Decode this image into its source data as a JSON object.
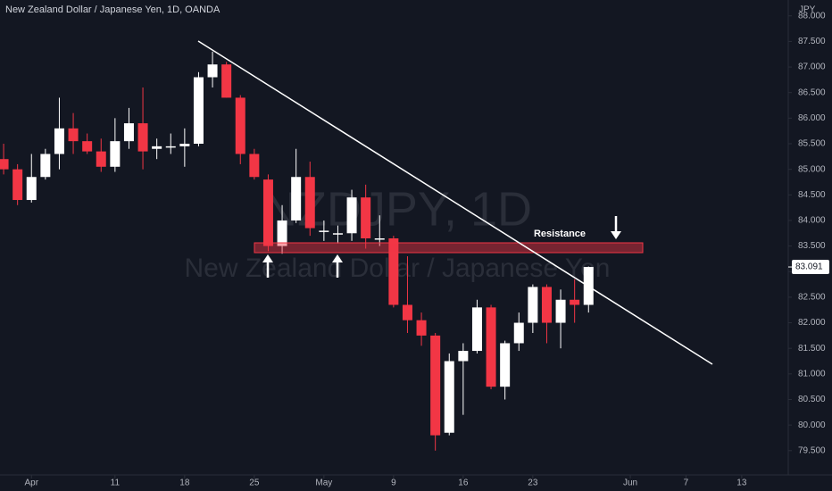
{
  "chart_data": {
    "type": "candlestick",
    "title": "New Zealand Dollar / Japanese Yen, 1D, OANDA",
    "currency": "JPY",
    "watermark": "NZDJPY, 1D",
    "watermark_subtitle": "New Zealand Dollar / Japanese Yen",
    "annotation": "Resistance",
    "last_price": {
      "value": 83.091,
      "label": "83.091"
    },
    "up_color": "#ffffff",
    "down_color": "#f23645",
    "xlim": [
      -0.26,
      56.15
    ],
    "ylim": [
      79.06,
      88.31
    ],
    "xticks": [
      {
        "value": 2,
        "label": "Apr"
      },
      {
        "value": 8,
        "label": "11"
      },
      {
        "value": 13,
        "label": "18"
      },
      {
        "value": 18,
        "label": "25"
      },
      {
        "value": 23,
        "label": "May"
      },
      {
        "value": 28,
        "label": "9"
      },
      {
        "value": 33,
        "label": "16"
      },
      {
        "value": 38,
        "label": "23"
      },
      {
        "value": 45,
        "label": "Jun"
      },
      {
        "value": 49,
        "label": "7"
      },
      {
        "value": 53,
        "label": "13"
      }
    ],
    "yticks": [
      {
        "value": 79.5,
        "label": "79.500"
      },
      {
        "value": 80,
        "label": "80.000"
      },
      {
        "value": 80.5,
        "label": "80.500"
      },
      {
        "value": 81,
        "label": "81.000"
      },
      {
        "value": 81.5,
        "label": "81.500"
      },
      {
        "value": 82,
        "label": "82.000"
      },
      {
        "value": 82.5,
        "label": "82.500"
      },
      {
        "value": 83,
        "label": "83.000"
      },
      {
        "value": 83.5,
        "label": "83.500"
      },
      {
        "value": 84,
        "label": "84.000"
      },
      {
        "value": 84.5,
        "label": "84.500"
      },
      {
        "value": 85,
        "label": "85.000"
      },
      {
        "value": 85.5,
        "label": "85.500"
      },
      {
        "value": 86,
        "label": "86.000"
      },
      {
        "value": 86.5,
        "label": "86.500"
      },
      {
        "value": 87,
        "label": "87.000"
      },
      {
        "value": 87.5,
        "label": "87.500"
      },
      {
        "value": 88,
        "label": "88.000"
      }
    ],
    "open": [
      85.2,
      85.0,
      84.4,
      84.85,
      85.3,
      85.8,
      85.55,
      85.35,
      85.05,
      85.55,
      85.9,
      85.4,
      85.45,
      85.45,
      85.5,
      86.8,
      87.05,
      86.4,
      85.3,
      84.8,
      83.5,
      84.0,
      84.85,
      83.8,
      83.75,
      83.75,
      84.45,
      83.65,
      83.65,
      82.35,
      82.05,
      81.75,
      79.85,
      81.25,
      81.45,
      82.3,
      80.75,
      81.6,
      82.0,
      82.7,
      82.0,
      82.45,
      82.35
    ],
    "high": [
      85.5,
      85.1,
      85.3,
      85.4,
      86.4,
      86.1,
      85.7,
      85.6,
      86.0,
      86.2,
      86.6,
      85.6,
      85.7,
      85.8,
      86.9,
      87.3,
      87.1,
      86.45,
      85.4,
      84.9,
      84.3,
      85.4,
      85.15,
      84.0,
      83.9,
      84.6,
      84.7,
      84.1,
      83.7,
      83.3,
      82.2,
      81.8,
      81.4,
      81.6,
      82.45,
      82.35,
      81.65,
      82.2,
      82.75,
      82.75,
      82.65,
      82.85,
      83.1
    ],
    "low": [
      84.9,
      84.3,
      84.35,
      84.8,
      85.0,
      85.3,
      85.3,
      84.95,
      84.95,
      85.4,
      85.0,
      85.2,
      85.3,
      85.05,
      85.45,
      86.6,
      86.4,
      85.1,
      84.8,
      83.4,
      83.35,
      83.95,
      83.7,
      83.6,
      83.55,
      83.6,
      83.45,
      83.5,
      82.3,
      81.8,
      81.55,
      79.5,
      79.8,
      80.2,
      81.4,
      80.7,
      80.5,
      81.45,
      81.8,
      81.6,
      81.5,
      82.0,
      82.2
    ],
    "close": [
      85.0,
      84.4,
      84.85,
      85.3,
      85.8,
      85.55,
      85.35,
      85.05,
      85.55,
      85.9,
      85.35,
      85.45,
      85.45,
      85.5,
      86.8,
      87.05,
      86.4,
      85.3,
      84.85,
      83.5,
      84.0,
      84.85,
      83.85,
      83.8,
      83.75,
      84.45,
      83.65,
      83.65,
      82.35,
      82.05,
      81.75,
      79.8,
      81.25,
      81.45,
      82.3,
      80.75,
      81.6,
      82.0,
      82.7,
      82.0,
      82.45,
      82.35,
      83.091
    ]
  }
}
